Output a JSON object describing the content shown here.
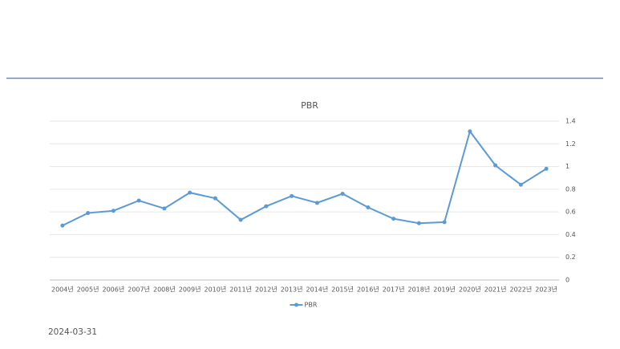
{
  "chart_data": {
    "type": "line",
    "title": "PBR",
    "categories": [
      "2004년",
      "2005년",
      "2006년",
      "2007년",
      "2008년",
      "2009년",
      "2010년",
      "2011년",
      "2012년",
      "2013년",
      "2014년",
      "2015년",
      "2016년",
      "2017년",
      "2018년",
      "2019년",
      "2020년",
      "2021년",
      "2022년",
      "2023년"
    ],
    "series": [
      {
        "name": "PBR",
        "color": "#5b9bd5",
        "values": [
          0.48,
          0.59,
          0.61,
          0.7,
          0.63,
          0.77,
          0.72,
          0.53,
          0.65,
          0.74,
          0.68,
          0.76,
          0.64,
          0.54,
          0.5,
          0.51,
          1.31,
          1.01,
          0.84,
          0.98
        ]
      }
    ],
    "ylim": [
      0,
      1.4
    ],
    "yticks": [
      0,
      0.2,
      0.4,
      0.6,
      0.8,
      1,
      1.2,
      1.4
    ],
    "grid": true,
    "y_axis_side": "right",
    "legend": "bottom"
  },
  "footer": {
    "date": "2024-03-31"
  }
}
